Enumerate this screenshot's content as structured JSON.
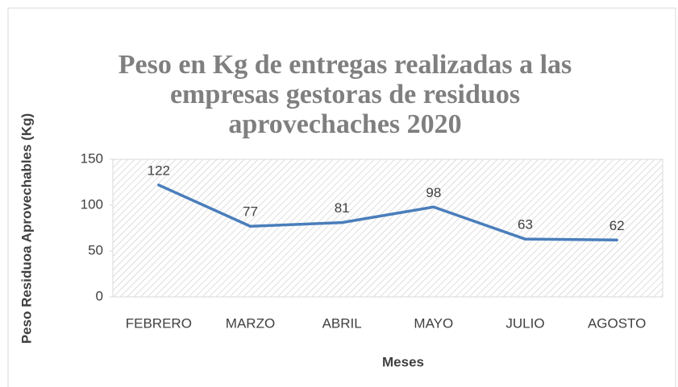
{
  "chart_data": {
    "type": "line",
    "title": "Peso en Kg de entregas realizadas a las empresas gestoras de residuos aprovechaches 2020",
    "x_label": "Meses",
    "y_label": "Peso Residuoa Aprovechables (Kg)",
    "categories": [
      "FEBRERO",
      "MARZO",
      "ABRIL",
      "MAYO",
      "JULIO",
      "AGOSTO"
    ],
    "values": [
      122,
      77,
      81,
      98,
      63,
      62
    ],
    "color": "#4a7ebb",
    "ylim": [
      0,
      150
    ],
    "yticks": [
      0,
      50,
      100,
      150
    ]
  }
}
